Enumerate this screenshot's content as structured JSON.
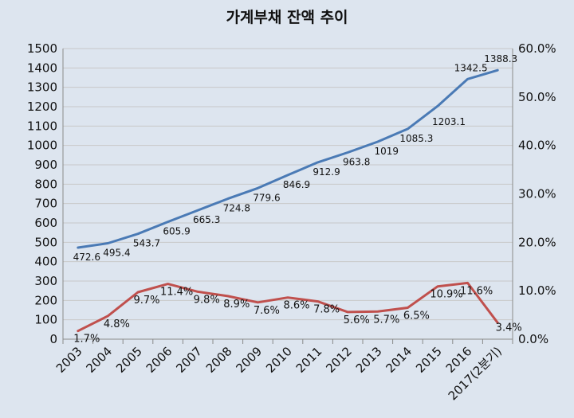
{
  "chart_data": {
    "type": "line",
    "title": "가계부채 잔액 추이",
    "categories": [
      "2003",
      "2004",
      "2005",
      "2006",
      "2007",
      "2008",
      "2009",
      "2010",
      "2011",
      "2012",
      "2013",
      "2014",
      "2015",
      "2016",
      "2017(2분기)"
    ],
    "y_left": {
      "min": 0,
      "max": 1500,
      "step": 100
    },
    "y_right": {
      "min": 0,
      "max": 60,
      "step": 10,
      "suffix": "%"
    },
    "grid": "horizontal",
    "series": [
      {
        "axis": "left",
        "color": "#4a7ab5",
        "values": [
          472.6,
          495.4,
          543.7,
          605.9,
          665.3,
          724.8,
          779.6,
          846.9,
          912.9,
          963.8,
          1019,
          1085.3,
          1203.1,
          1342.5,
          1388.3
        ],
        "labels": [
          "472.6",
          "495.4",
          "543.7",
          "605.9",
          "665.3",
          "724.8",
          "779.6",
          "846.9",
          "912.9",
          "963.8",
          "1019",
          "1085.3",
          "1203.1",
          "1342.5",
          "1388.3"
        ]
      },
      {
        "axis": "right",
        "color": "#c0504d",
        "values": [
          1.7,
          4.8,
          9.7,
          11.4,
          9.8,
          8.9,
          7.6,
          8.6,
          7.8,
          5.6,
          5.7,
          6.5,
          10.9,
          11.6,
          3.4
        ],
        "labels": [
          "1.7%",
          "4.8%",
          "9.7%",
          "11.4%",
          "9.8%",
          "8.9%",
          "7.6%",
          "8.6%",
          "7.8%",
          "5.6%",
          "5.7%",
          "6.5%",
          "10.9%",
          "11.6%",
          "3.4%"
        ]
      }
    ]
  }
}
